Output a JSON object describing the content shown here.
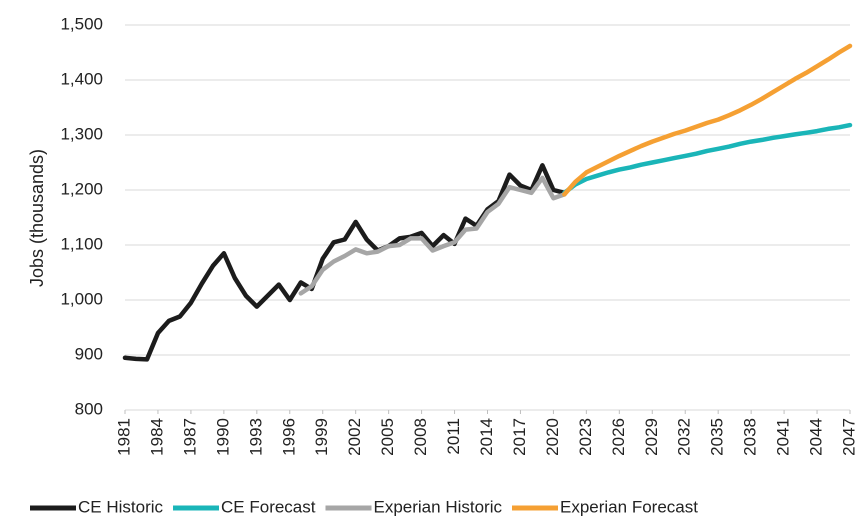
{
  "chart_data": {
    "type": "line",
    "y_axis_label": "Jobs (thousands)",
    "x": [
      1981,
      1982,
      1983,
      1984,
      1985,
      1986,
      1987,
      1988,
      1989,
      1990,
      1991,
      1992,
      1993,
      1994,
      1995,
      1996,
      1997,
      1998,
      1999,
      2000,
      2001,
      2002,
      2003,
      2004,
      2005,
      2006,
      2007,
      2008,
      2009,
      2010,
      2011,
      2012,
      2013,
      2014,
      2015,
      2016,
      2017,
      2018,
      2019,
      2020,
      2021,
      2022,
      2023,
      2024,
      2025,
      2026,
      2027,
      2028,
      2029,
      2030,
      2031,
      2032,
      2033,
      2034,
      2035,
      2036,
      2037,
      2038,
      2039,
      2040,
      2041,
      2042,
      2043,
      2044,
      2045,
      2046,
      2047
    ],
    "xlim": [
      1981,
      2047
    ],
    "xticks": [
      1981,
      1984,
      1987,
      1990,
      1993,
      1996,
      1999,
      2002,
      2005,
      2008,
      2011,
      2014,
      2017,
      2020,
      2023,
      2026,
      2029,
      2032,
      2035,
      2038,
      2041,
      2044,
      2047
    ],
    "ylim": [
      800,
      1500
    ],
    "yticks": [
      800,
      900,
      {
        "value": 1000,
        "label": "1,000"
      },
      {
        "value": 1100,
        "label": "1,100"
      },
      {
        "value": 1200,
        "label": "1,200"
      },
      {
        "value": 1300,
        "label": "1,300"
      },
      {
        "value": 1400,
        "label": "1,400"
      },
      {
        "value": 1500,
        "label": "1,500"
      }
    ],
    "grid": true,
    "legend": "bottom",
    "series": [
      {
        "name": "CE Historic",
        "color": "#1c1c1c",
        "values": [
          895,
          893,
          892,
          940,
          962,
          970,
          995,
          1030,
          1062,
          1085,
          1040,
          1008,
          988,
          1008,
          1028,
          1000,
          1032,
          1020,
          1075,
          1105,
          1110,
          1142,
          1110,
          1090,
          1098,
          1112,
          1115,
          1122,
          1098,
          1118,
          1102,
          1148,
          1135,
          1165,
          1180,
          1228,
          1208,
          1200,
          1245,
          1200,
          1195,
          null,
          null,
          null,
          null,
          null,
          null,
          null,
          null,
          null,
          null,
          null,
          null,
          null,
          null,
          null,
          null,
          null,
          null,
          null,
          null,
          null,
          null,
          null,
          null,
          null,
          null
        ]
      },
      {
        "name": "CE Forecast",
        "color": "#1ab5b8",
        "values": [
          null,
          null,
          null,
          null,
          null,
          null,
          null,
          null,
          null,
          null,
          null,
          null,
          null,
          null,
          null,
          null,
          null,
          null,
          null,
          null,
          null,
          null,
          null,
          null,
          null,
          null,
          null,
          null,
          null,
          null,
          null,
          null,
          null,
          null,
          null,
          null,
          null,
          null,
          null,
          null,
          1195,
          1210,
          1220,
          1226,
          1232,
          1237,
          1241,
          1246,
          1250,
          1254,
          1258,
          1262,
          1266,
          1271,
          1275,
          1279,
          1284,
          1288,
          1291,
          1295,
          1298,
          1301,
          1304,
          1307,
          1311,
          1314,
          1318
        ]
      },
      {
        "name": "Experian Historic",
        "color": "#a6a6a6",
        "values": [
          null,
          null,
          null,
          null,
          null,
          null,
          null,
          null,
          null,
          null,
          null,
          null,
          null,
          null,
          null,
          null,
          1012,
          1025,
          1055,
          1070,
          1080,
          1092,
          1085,
          1088,
          1098,
          1100,
          1112,
          1112,
          1090,
          1098,
          1105,
          1128,
          1130,
          1160,
          1175,
          1205,
          1200,
          1195,
          1222,
          1185,
          1192,
          null,
          null,
          null,
          null,
          null,
          null,
          null,
          null,
          null,
          null,
          null,
          null,
          null,
          null,
          null,
          null,
          null,
          null,
          null,
          null,
          null,
          null,
          null,
          null,
          null,
          null
        ]
      },
      {
        "name": "Experian Forecast",
        "color": "#f5a033",
        "values": [
          null,
          null,
          null,
          null,
          null,
          null,
          null,
          null,
          null,
          null,
          null,
          null,
          null,
          null,
          null,
          null,
          null,
          null,
          null,
          null,
          null,
          null,
          null,
          null,
          null,
          null,
          null,
          null,
          null,
          null,
          null,
          null,
          null,
          null,
          null,
          null,
          null,
          null,
          null,
          null,
          1192,
          1215,
          1232,
          1242,
          1252,
          1262,
          1271,
          1280,
          1288,
          1295,
          1302,
          1308,
          1315,
          1322,
          1328,
          1336,
          1345,
          1355,
          1366,
          1378,
          1390,
          1402,
          1413,
          1425,
          1437,
          1450,
          1462
        ]
      }
    ]
  }
}
